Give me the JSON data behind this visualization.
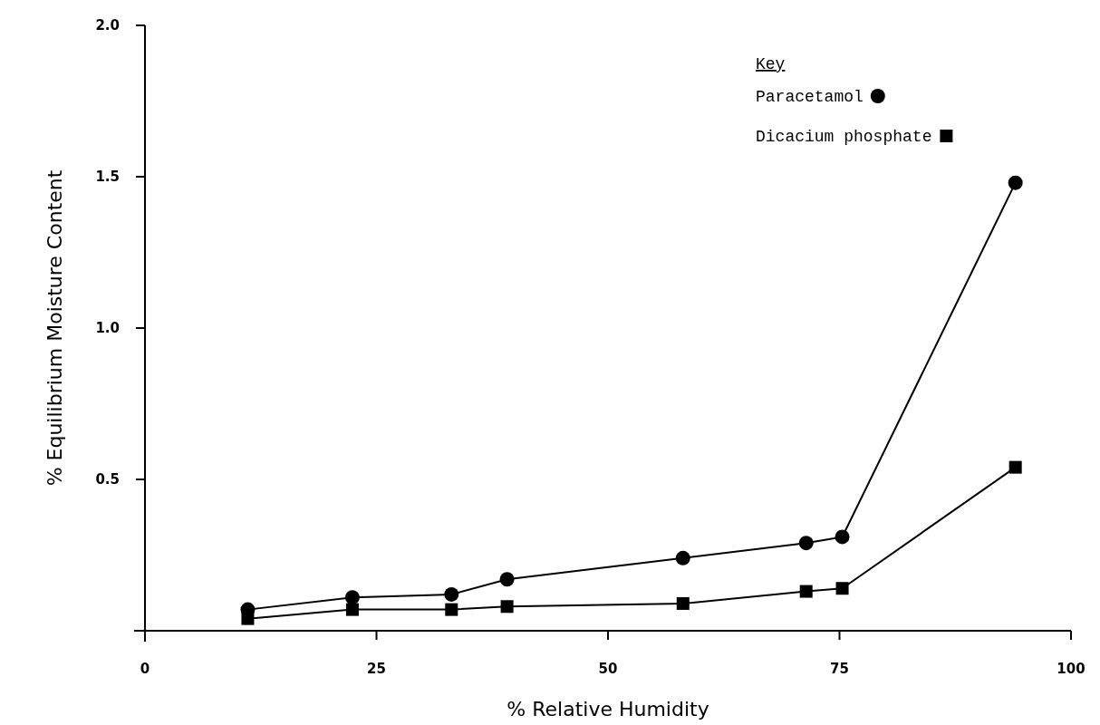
{
  "chart_data": {
    "type": "line",
    "xlabel": "% Relative Humidity",
    "ylabel": "% Equilibrium Moisture Content",
    "legend_title": "Key",
    "legend": "top right",
    "x": [
      11.1,
      22.4,
      33.1,
      39.1,
      58.1,
      71.4,
      75.3,
      94.0
    ],
    "series": [
      {
        "name": "Paracetamol",
        "color": "#000000",
        "marker": "circle",
        "values": [
          0.07,
          0.11,
          0.12,
          0.17,
          0.24,
          0.29,
          0.31,
          1.48
        ]
      },
      {
        "name": "Dicacium phosphate",
        "color": "#000000",
        "marker": "square",
        "values": [
          0.04,
          0.07,
          0.07,
          0.08,
          0.09,
          0.13,
          0.14,
          0.54
        ]
      }
    ],
    "xlim": [
      0,
      100
    ],
    "xticks": [
      0,
      25,
      50,
      75,
      100
    ],
    "ylim": [
      0,
      2.0
    ],
    "yticks": [
      {
        "value": 0.5,
        "label": "0.5"
      },
      {
        "value": 1.0,
        "label": "1.0"
      },
      {
        "value": 1.5,
        "label": "1.5"
      },
      {
        "value": 2.0,
        "label": "2.0"
      }
    ],
    "grid": false,
    "line_style": "solid"
  }
}
